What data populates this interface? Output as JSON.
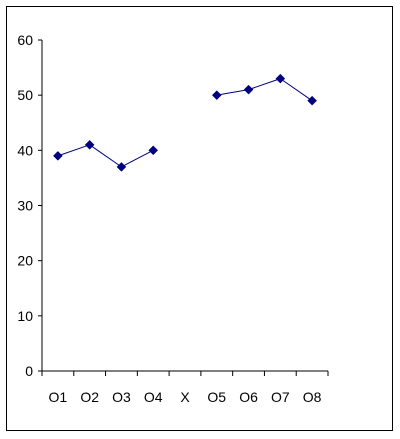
{
  "chart_data": {
    "type": "line",
    "categories": [
      "O1",
      "O2",
      "O3",
      "O4",
      "X",
      "O5",
      "O6",
      "O7",
      "O8"
    ],
    "series": [
      {
        "values": [
          39,
          41,
          37,
          40,
          null,
          50,
          51,
          53,
          49
        ],
        "color": "#000080",
        "marker": "diamond"
      }
    ],
    "yticks": [
      "0",
      "10",
      "20",
      "30",
      "40",
      "50",
      "60"
    ],
    "ylim": [
      0,
      60
    ],
    "title": "",
    "xlabel": "",
    "ylabel": "",
    "grid": false,
    "legend": false
  }
}
